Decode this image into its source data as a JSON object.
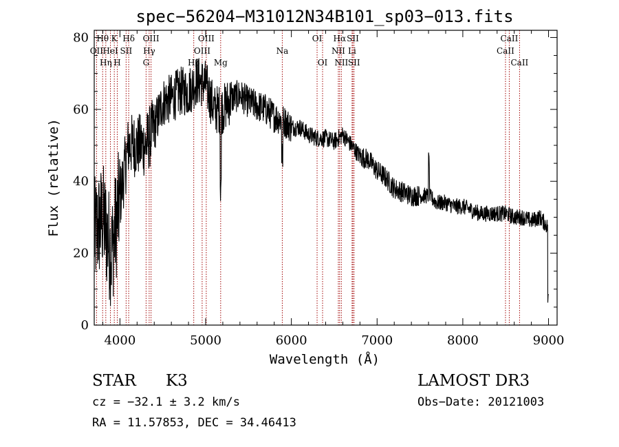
{
  "chart_data": {
    "type": "line",
    "title": "spec−56204−M31012N34B101_sp03−013.fits",
    "xlabel": "Wavelength (Å)",
    "ylabel": "Flux (relative)",
    "xlim": [
      3700,
      9100
    ],
    "ylim": [
      0,
      82
    ],
    "xticks": [
      4000,
      5000,
      6000,
      7000,
      8000,
      9000
    ],
    "yticks": [
      0,
      20,
      40,
      60,
      80
    ],
    "x_minor_step": 200,
    "y_minor_step": 5,
    "colors": {
      "spectrum": "#000000",
      "lines": "#a00000",
      "axes": "#000000"
    },
    "spectrum_approx": {
      "description": "Noisy stellar continuum (approximate shape read from plot)",
      "x": [
        3700,
        3800,
        3900,
        4000,
        4100,
        4200,
        4300,
        4400,
        4500,
        4600,
        4700,
        4800,
        4900,
        5000,
        5100,
        5200,
        5300,
        5400,
        5500,
        5600,
        5700,
        5800,
        5900,
        6000,
        6100,
        6200,
        6300,
        6400,
        6500,
        6600,
        6700,
        6800,
        6900,
        7000,
        7100,
        7200,
        7300,
        7400,
        7500,
        7600,
        7700,
        7800,
        7900,
        8000,
        8100,
        8200,
        8300,
        8400,
        8500,
        8600,
        8700,
        8800,
        8900,
        9000
      ],
      "y": [
        25,
        30,
        20,
        35,
        50,
        50,
        50,
        55,
        62,
        63,
        65,
        65,
        68,
        67,
        60,
        60,
        63,
        64,
        62,
        61,
        60,
        58,
        57,
        55,
        55,
        53,
        52,
        52,
        51,
        53,
        50,
        47,
        46,
        43,
        41,
        38,
        37,
        36,
        36,
        36,
        34,
        34,
        33,
        33,
        32,
        31,
        31,
        31,
        31,
        30,
        30,
        29,
        30,
        27
      ]
    },
    "spectral_lines": [
      {
        "label": "OII",
        "wavelength": 3727,
        "row": 2
      },
      {
        "label": "Hθ",
        "wavelength": 3798,
        "row": 1
      },
      {
        "label": "Hη",
        "wavelength": 3835,
        "row": 3
      },
      {
        "label": "HeI",
        "wavelength": 3889,
        "row": 2
      },
      {
        "label": "K",
        "wavelength": 3934,
        "row": 1
      },
      {
        "label": "H",
        "wavelength": 3969,
        "row": 3
      },
      {
        "label": "SII",
        "wavelength": 4072,
        "row": 2
      },
      {
        "label": "Hδ",
        "wavelength": 4102,
        "row": 1
      },
      {
        "label": "G",
        "wavelength": 4305,
        "row": 3
      },
      {
        "label": "Hγ",
        "wavelength": 4341,
        "row": 2
      },
      {
        "label": "OIII",
        "wavelength": 4363,
        "row": 1
      },
      {
        "label": "Hβ",
        "wavelength": 4861,
        "row": 3
      },
      {
        "label": "OIII",
        "wavelength": 4959,
        "row": 2
      },
      {
        "label": "OIII",
        "wavelength": 5007,
        "row": 1
      },
      {
        "label": "Mg",
        "wavelength": 5175,
        "row": 3
      },
      {
        "label": "Na",
        "wavelength": 5894,
        "row": 2
      },
      {
        "label": "OI",
        "wavelength": 6300,
        "row": 1
      },
      {
        "label": "OI",
        "wavelength": 6364,
        "row": 3
      },
      {
        "label": "NII",
        "wavelength": 6548,
        "row": 2
      },
      {
        "label": "Hα",
        "wavelength": 6563,
        "row": 1
      },
      {
        "label": "NII",
        "wavelength": 6583,
        "row": 3
      },
      {
        "label": "Li",
        "wavelength": 6708,
        "row": 2
      },
      {
        "label": "SII",
        "wavelength": 6717,
        "row": 1
      },
      {
        "label": "SII",
        "wavelength": 6731,
        "row": 3
      },
      {
        "label": "CaII",
        "wavelength": 8498,
        "row": 2
      },
      {
        "label": "CaII",
        "wavelength": 8542,
        "row": 1
      },
      {
        "label": "CaII",
        "wavelength": 8662,
        "row": 3
      }
    ]
  },
  "info": {
    "object_class": "STAR",
    "subclass": "K3",
    "redshift_line": "cz = −32.1 ± 3.2 km/s",
    "coords_line": "RA =  11.57853, DEC =  34.46413",
    "survey": "LAMOST DR3",
    "obs_date": "Obs−Date: 20121003"
  }
}
